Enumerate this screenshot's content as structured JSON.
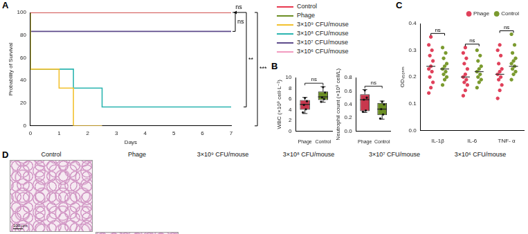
{
  "chart_data": [
    {
      "panel": "A",
      "type": "line",
      "line_style": "step",
      "grid": false,
      "x_label": "Days",
      "y_label": "Probability of Survival",
      "xlim": [
        0,
        7
      ],
      "xticks": [
        0,
        1,
        2,
        3,
        4,
        5,
        6,
        7
      ],
      "ylim": [
        0,
        100
      ],
      "yticks": [
        0,
        20,
        40,
        60,
        80,
        100
      ],
      "series": [
        {
          "name": "Control",
          "color": "#e8384f",
          "x": [
            0,
            7
          ],
          "values": [
            100,
            100
          ]
        },
        {
          "name": "Phage",
          "color": "#6b8e23",
          "x": [
            0,
            7
          ],
          "values": [
            100,
            100
          ]
        },
        {
          "name": "3×10⁹ CFU/mouse",
          "color": "#f2c12e",
          "x": [
            0,
            1,
            1.5,
            2.5
          ],
          "values": [
            100,
            50,
            33.3,
            0
          ]
        },
        {
          "name": "3×10⁸ CFU/mouse",
          "color": "#2bb5b0",
          "x": [
            0,
            1.5,
            2.5,
            5,
            7
          ],
          "values": [
            100,
            50,
            33.3,
            16.7,
            16.7
          ]
        },
        {
          "name": "3×10⁷ CFU/mouse",
          "color": "#5e4b8b",
          "x": [
            0,
            1,
            7
          ],
          "values": [
            100,
            83.3,
            83.3
          ]
        },
        {
          "name": "3×10⁶ CFU/mouse",
          "color": "#f29bc0",
          "x": [
            0,
            7
          ],
          "values": [
            100,
            100
          ]
        }
      ],
      "annotations": [
        {
          "text": "ns",
          "between": [
            "Control",
            "Phage"
          ]
        },
        {
          "text": "ns",
          "between": [
            "Control",
            "3×10⁷ CFU/mouse"
          ]
        },
        {
          "text": "**",
          "between": [
            "Control",
            "3×10⁸ CFU/mouse"
          ]
        },
        {
          "text": "***",
          "between": [
            "Control",
            "3×10⁹ CFU/mouse"
          ]
        }
      ]
    },
    {
      "panel": "B",
      "type": "box",
      "grid": false,
      "y_label": "WBC (×10⁹ cell·L⁻¹)",
      "ylim": [
        0,
        10
      ],
      "yticks": [
        0,
        2,
        4,
        6,
        8,
        10
      ],
      "categories": [
        "Phage",
        "Control"
      ],
      "colors": [
        "#c8374d",
        "#6b8e23"
      ],
      "boxes": [
        {
          "min": 3.3,
          "q1": 4.0,
          "median": 5.0,
          "q3": 5.8,
          "max": 6.3,
          "points": [
            3.5,
            4.1,
            4.9,
            5.6,
            6.2
          ]
        },
        {
          "min": 5.4,
          "q1": 5.8,
          "median": 6.4,
          "q3": 7.4,
          "max": 8.3,
          "points": [
            5.5,
            6.0,
            6.3,
            7.2,
            8.2
          ]
        }
      ],
      "annotations": [
        {
          "text": "ns",
          "between": [
            "Phage",
            "Control"
          ]
        }
      ]
    },
    {
      "type": "box",
      "grid": false,
      "y_label": "Neutrophil count (×10⁹ cell/L)",
      "ylim": [
        0,
        0.8
      ],
      "yticks": [
        {
          "value": 0,
          "label": "0.0"
        },
        0.2,
        0.4,
        0.6,
        0.8
      ],
      "categories": [
        "Phage",
        "Control"
      ],
      "colors": [
        "#c8374d",
        "#6b8e23"
      ],
      "boxes": [
        {
          "min": 0.28,
          "q1": 0.3,
          "median": 0.47,
          "q3": 0.55,
          "max": 0.62,
          "points": [
            0.29,
            0.31,
            0.47,
            0.5,
            0.61
          ]
        },
        {
          "min": 0.18,
          "q1": 0.24,
          "median": 0.33,
          "q3": 0.42,
          "max": 0.45,
          "points": [
            0.19,
            0.25,
            0.33,
            0.4,
            0.44
          ]
        }
      ],
      "annotations": [
        {
          "text": "ns",
          "between": [
            "Phage",
            "Control"
          ]
        }
      ]
    },
    {
      "panel": "C",
      "type": "scatter",
      "grid": false,
      "legend": "upper right",
      "y_label": "OD₄₅₀ₙₘ",
      "ylim": [
        0,
        0.4
      ],
      "yticks": [
        {
          "value": 0,
          "label": "0.0"
        },
        0.1,
        0.2,
        0.3,
        0.4
      ],
      "categories": [
        "IL-1β",
        "IL-6",
        "TNF- α"
      ],
      "series": [
        {
          "name": "Phage",
          "color": "#e0405a",
          "marker": "circle",
          "values": [
            [
              0.14,
              0.16,
              0.18,
              0.2,
              0.22,
              0.23,
              0.24,
              0.26,
              0.28,
              0.3,
              0.32,
              0.35
            ],
            [
              0.13,
              0.15,
              0.17,
              0.18,
              0.19,
              0.2,
              0.21,
              0.23,
              0.25,
              0.27,
              0.29,
              0.31
            ],
            [
              0.12,
              0.15,
              0.17,
              0.19,
              0.2,
              0.21,
              0.22,
              0.23,
              0.25,
              0.28,
              0.3,
              0.32
            ]
          ],
          "medians": [
            0.24,
            0.2,
            0.21
          ]
        },
        {
          "name": "Control",
          "color": "#7a9a2e",
          "marker": "circle",
          "values": [
            [
              0.17,
              0.19,
              0.2,
              0.21,
              0.22,
              0.23,
              0.24,
              0.25,
              0.27,
              0.29,
              0.31
            ],
            [
              0.16,
              0.18,
              0.19,
              0.2,
              0.21,
              0.22,
              0.23,
              0.24,
              0.26,
              0.28,
              0.3
            ],
            [
              0.19,
              0.21,
              0.22,
              0.23,
              0.24,
              0.25,
              0.26,
              0.27,
              0.29,
              0.32,
              0.36
            ]
          ],
          "medians": [
            0.23,
            0.22,
            0.24
          ]
        }
      ],
      "annotations": [
        {
          "text": "ns",
          "category": "IL-1β"
        },
        {
          "text": "ns",
          "category": "IL-6"
        },
        {
          "text": "ns",
          "category": "TNF- α"
        }
      ]
    }
  ],
  "panel_d": {
    "panel": "D",
    "titles": [
      "Control",
      "Phage",
      "3×10⁹ CFU/mouse",
      "3×10⁸ CFU/mouse",
      "3×10⁷ CFU/mouse",
      "3×10⁶ CFU/mouse"
    ],
    "scale_bar": "100 μm"
  }
}
